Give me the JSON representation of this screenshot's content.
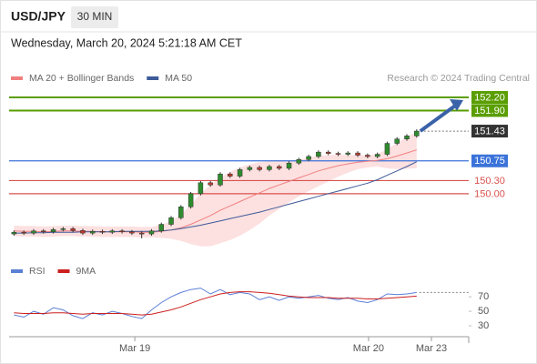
{
  "header": {
    "symbol": "USD/JPY",
    "interval": "30 MIN",
    "timestamp": "Wednesday, March 20, 2024 5:21:18 AM CET"
  },
  "chart_data": [
    {
      "type": "candlestick",
      "credit": "Research © 2024 Trading Central",
      "up_color": "#2e8b2e",
      "down_color": "#c0392b",
      "x": [
        0,
        1,
        2,
        3,
        4,
        5,
        6,
        7,
        8,
        9,
        10,
        11,
        12,
        13,
        14,
        15,
        16,
        17,
        18,
        19,
        20,
        21,
        22,
        23,
        24,
        25,
        26,
        27,
        28,
        29,
        30,
        31,
        32,
        33,
        34,
        35,
        36,
        37,
        38,
        39,
        40,
        41
      ],
      "open": [
        149.08,
        149.12,
        149.1,
        149.15,
        149.13,
        149.18,
        149.2,
        149.16,
        149.1,
        149.14,
        149.12,
        149.15,
        149.13,
        149.1,
        149.08,
        149.15,
        149.3,
        149.45,
        149.7,
        150.0,
        150.25,
        150.2,
        150.45,
        150.4,
        150.55,
        150.6,
        150.55,
        150.62,
        150.58,
        150.7,
        150.78,
        150.85,
        150.95,
        150.92,
        150.9,
        150.93,
        150.88,
        150.85,
        150.9,
        151.15,
        151.25,
        151.32
      ],
      "high": [
        149.16,
        149.16,
        149.19,
        149.19,
        149.22,
        149.24,
        149.24,
        149.2,
        149.18,
        149.18,
        149.19,
        149.19,
        149.17,
        149.14,
        149.19,
        149.34,
        149.49,
        149.74,
        150.04,
        150.29,
        150.29,
        150.49,
        150.49,
        150.59,
        150.64,
        150.64,
        150.66,
        150.66,
        150.74,
        150.82,
        150.89,
        150.99,
        150.99,
        150.96,
        150.97,
        150.97,
        150.92,
        150.94,
        151.19,
        151.29,
        151.36,
        151.47
      ],
      "low": [
        149.04,
        149.06,
        149.06,
        149.09,
        149.09,
        149.14,
        149.12,
        149.06,
        149.06,
        149.08,
        149.08,
        149.09,
        149.06,
        148.98,
        149.04,
        149.11,
        149.26,
        149.41,
        149.66,
        149.96,
        150.16,
        150.16,
        150.36,
        150.36,
        150.51,
        150.51,
        150.51,
        150.54,
        150.54,
        150.66,
        150.74,
        150.81,
        150.88,
        150.86,
        150.86,
        150.84,
        150.81,
        150.81,
        150.86,
        151.11,
        151.21,
        151.28
      ],
      "close": [
        149.12,
        149.1,
        149.15,
        149.13,
        149.18,
        149.2,
        149.16,
        149.1,
        149.14,
        149.12,
        149.15,
        149.13,
        149.1,
        149.08,
        149.15,
        149.3,
        149.45,
        149.7,
        150.0,
        150.25,
        150.2,
        150.45,
        150.4,
        150.55,
        150.6,
        150.55,
        150.62,
        150.58,
        150.7,
        150.78,
        150.85,
        150.95,
        150.92,
        150.9,
        150.93,
        150.88,
        150.85,
        150.9,
        151.15,
        151.25,
        151.32,
        151.43
      ],
      "series": [
        {
          "name": "MA 20 + Bollinger Bands",
          "color": "#f08080",
          "band_color": "#fde0e0",
          "values": [
            149.15,
            149.14,
            149.14,
            149.13,
            149.14,
            149.15,
            149.15,
            149.14,
            149.14,
            149.13,
            149.13,
            149.13,
            149.13,
            149.12,
            149.12,
            149.14,
            149.17,
            149.22,
            149.3,
            149.4,
            149.5,
            149.62,
            149.72,
            149.82,
            149.92,
            150.02,
            150.12,
            150.2,
            150.28,
            150.36,
            150.44,
            150.52,
            150.58,
            150.64,
            150.68,
            150.72,
            150.74,
            150.76,
            150.8,
            150.86,
            150.93,
            151.0
          ],
          "upper": [
            149.27,
            149.26,
            149.26,
            149.25,
            149.26,
            149.27,
            149.27,
            149.26,
            149.26,
            149.25,
            149.25,
            149.25,
            149.25,
            149.24,
            149.24,
            149.29,
            149.37,
            149.52,
            149.75,
            150.0,
            150.2,
            150.37,
            150.5,
            150.6,
            150.67,
            150.72,
            150.74,
            150.75,
            150.76,
            150.78,
            150.82,
            150.87,
            150.88,
            150.89,
            150.88,
            150.88,
            150.88,
            150.9,
            151.02,
            151.16,
            151.29,
            151.42
          ],
          "lower": [
            149.03,
            149.02,
            149.02,
            149.01,
            149.02,
            149.03,
            149.03,
            149.02,
            149.02,
            149.01,
            149.01,
            149.01,
            149.01,
            149.0,
            149.0,
            148.99,
            148.97,
            148.92,
            148.85,
            148.8,
            148.8,
            148.87,
            148.94,
            149.04,
            149.17,
            149.32,
            149.5,
            149.65,
            149.8,
            149.94,
            150.06,
            150.17,
            150.28,
            150.39,
            150.48,
            150.56,
            150.6,
            150.62,
            150.58,
            150.56,
            150.57,
            150.58
          ]
        },
        {
          "name": "MA 50",
          "color": "#3d5a99",
          "values": [
            149.1,
            149.1,
            149.11,
            149.11,
            149.12,
            149.12,
            149.12,
            149.13,
            149.13,
            149.13,
            149.13,
            149.14,
            149.14,
            149.14,
            149.14,
            149.15,
            149.17,
            149.2,
            149.24,
            149.28,
            149.33,
            149.38,
            149.43,
            149.48,
            149.53,
            149.58,
            149.64,
            149.7,
            149.76,
            149.82,
            149.88,
            149.94,
            150.0,
            150.06,
            150.12,
            150.18,
            150.24,
            150.32,
            150.42,
            150.52,
            150.62,
            150.73
          ]
        }
      ],
      "levels": [
        {
          "value": 152.2,
          "label": "152.20",
          "color": "#5a9e00",
          "line_style": "solid",
          "label_style": "box"
        },
        {
          "value": 151.9,
          "label": "151.90",
          "color": "#5a9e00",
          "line_style": "solid",
          "label_style": "box"
        },
        {
          "value": 151.43,
          "color": "#333333",
          "line_style": "dotted",
          "label_style": "box"
        },
        {
          "value": 150.75,
          "color": "#3b73d9",
          "line_style": "solid",
          "label_style": "box"
        },
        {
          "value": 150.3,
          "label": "150.30",
          "color": "#d9534f",
          "line_style": "solid",
          "label_style": "text"
        },
        {
          "value": 150.0,
          "label": "150.00",
          "color": "#d9534f",
          "line_style": "solid",
          "label_style": "text"
        }
      ],
      "xlim": [
        -0.5,
        46.3
      ],
      "ylim": [
        148.5,
        152.45
      ],
      "xticks": [
        {
          "value": 12.3,
          "label": "Mar 19"
        },
        {
          "value": 36.1,
          "label": "Mar 20"
        },
        {
          "value": 42.5,
          "label": "Mar 23"
        }
      ]
    },
    {
      "type": "line",
      "series": [
        {
          "name": "RSI",
          "color": "#5b7fd6",
          "values": [
            45,
            42,
            50,
            46,
            55,
            52,
            44,
            40,
            48,
            45,
            50,
            47,
            43,
            40,
            52,
            62,
            70,
            76,
            80,
            82,
            74,
            80,
            73,
            76,
            74,
            66,
            70,
            65,
            70,
            68,
            70,
            72,
            68,
            66,
            69,
            64,
            62,
            66,
            74,
            73,
            74,
            76
          ]
        },
        {
          "name": "9MA",
          "color": "#cc1f1f",
          "values": [
            48,
            47,
            47,
            47,
            48,
            48,
            47,
            46,
            47,
            47,
            47,
            47,
            46,
            45,
            46,
            49,
            52,
            56,
            61,
            66,
            70,
            74,
            76,
            77,
            77,
            76,
            75,
            73,
            71,
            70,
            69,
            69,
            69,
            68,
            68,
            68,
            67,
            67,
            68,
            69,
            70,
            71
          ]
        }
      ],
      "ylim": [
        20,
        84
      ],
      "yticks": [
        30,
        50,
        70
      ]
    }
  ]
}
